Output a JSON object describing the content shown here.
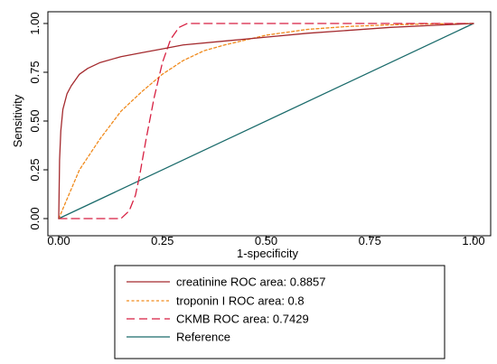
{
  "chart_data": {
    "type": "line",
    "xlabel": "1-specificity",
    "ylabel": "Sensitivity",
    "xlim": [
      0,
      1
    ],
    "ylim": [
      0,
      1
    ],
    "x_ticks": [
      "0.00",
      "0.25",
      "0.50",
      "0.75",
      "1.00"
    ],
    "y_ticks": [
      "0.00",
      "0.25",
      "0.50",
      "0.75",
      "1.00"
    ],
    "grid": false,
    "legend_position": "bottom",
    "series": [
      {
        "name": "creatinine ROC area: 0.8857",
        "color": "#a42a2e",
        "style": "solid",
        "x": [
          0,
          0.002,
          0.005,
          0.01,
          0.02,
          0.03,
          0.05,
          0.07,
          0.1,
          0.15,
          0.2,
          0.25,
          0.3,
          0.4,
          0.5,
          0.6,
          0.7,
          0.8,
          0.9,
          1.0
        ],
        "y": [
          0,
          0.3,
          0.45,
          0.56,
          0.64,
          0.68,
          0.74,
          0.77,
          0.8,
          0.83,
          0.85,
          0.87,
          0.89,
          0.91,
          0.93,
          0.95,
          0.965,
          0.98,
          0.99,
          1.0
        ]
      },
      {
        "name": "troponin I ROC area: 0.8",
        "color": "#f08a1c",
        "style": "dotted",
        "x": [
          0,
          0.02,
          0.05,
          0.1,
          0.15,
          0.2,
          0.25,
          0.3,
          0.35,
          0.4,
          0.5,
          0.6,
          0.7,
          0.8,
          0.9,
          1.0
        ],
        "y": [
          0,
          0.1,
          0.25,
          0.41,
          0.55,
          0.65,
          0.74,
          0.81,
          0.86,
          0.89,
          0.94,
          0.97,
          0.985,
          0.993,
          0.998,
          1.0
        ]
      },
      {
        "name": "CKMB ROC area: 0.7429",
        "color": "#d71f41",
        "style": "dashed",
        "x": [
          0,
          0.15,
          0.17,
          0.185,
          0.195,
          0.21,
          0.23,
          0.25,
          0.27,
          0.29,
          0.31,
          0.4,
          0.6,
          0.8,
          1.0
        ],
        "y": [
          0,
          0,
          0.04,
          0.12,
          0.22,
          0.4,
          0.62,
          0.8,
          0.92,
          0.98,
          1.0,
          1.0,
          1.0,
          1.0,
          1.0
        ]
      },
      {
        "name": "Reference",
        "color": "#1a6b6b",
        "style": "solid",
        "x": [
          0,
          1
        ],
        "y": [
          0,
          1
        ]
      }
    ]
  }
}
